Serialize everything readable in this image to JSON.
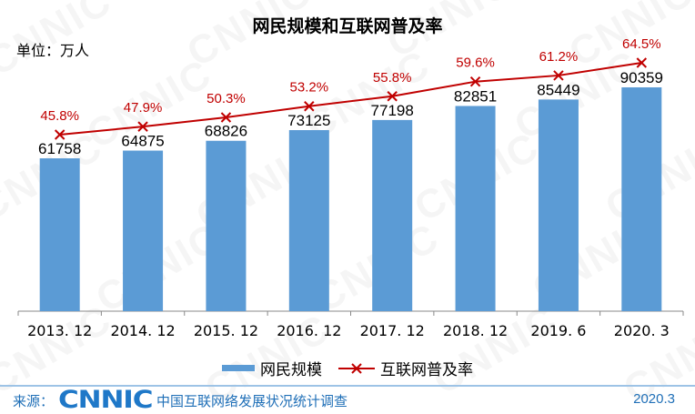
{
  "header": {
    "title": "网民规模和互联网普及率",
    "unit": "单位：万人"
  },
  "legend": {
    "bar_label": "网民规模",
    "line_label": "互联网普及率"
  },
  "footer": {
    "source_label": "来源：",
    "logo_text": "CNNIC",
    "survey_name": "中国互联网络发展状况统计调查",
    "date": "2020.3"
  },
  "colors": {
    "bar": "#5B9BD5",
    "line": "#C00000",
    "line_label": "#C00000",
    "footer_text": "#1F6FB7"
  },
  "chart_data": {
    "type": "bar",
    "title": "网民规模和互联网普及率",
    "xlabel": "",
    "ylabel": "单位：万人",
    "categories": [
      "2013. 12",
      "2014. 12",
      "2015. 12",
      "2016. 12",
      "2017. 12",
      "2018. 12",
      "2019. 6",
      "2020. 3"
    ],
    "series": [
      {
        "name": "网民规模",
        "type": "bar",
        "values": [
          61758,
          64875,
          68826,
          73125,
          77198,
          82851,
          85449,
          90359
        ],
        "labels": [
          "61758",
          "64875",
          "68826",
          "73125",
          "77198",
          "82851",
          "85449",
          "90359"
        ]
      },
      {
        "name": "互联网普及率",
        "type": "line",
        "marker": "x",
        "values": [
          45.8,
          47.9,
          50.3,
          53.2,
          55.8,
          59.6,
          61.2,
          64.5
        ],
        "labels": [
          "45.8%",
          "47.9%",
          "50.3%",
          "53.2%",
          "55.8%",
          "59.6%",
          "61.2%",
          "64.5%"
        ]
      }
    ],
    "grid": false,
    "legend_position": "bottom",
    "y_axis_visible": false
  }
}
